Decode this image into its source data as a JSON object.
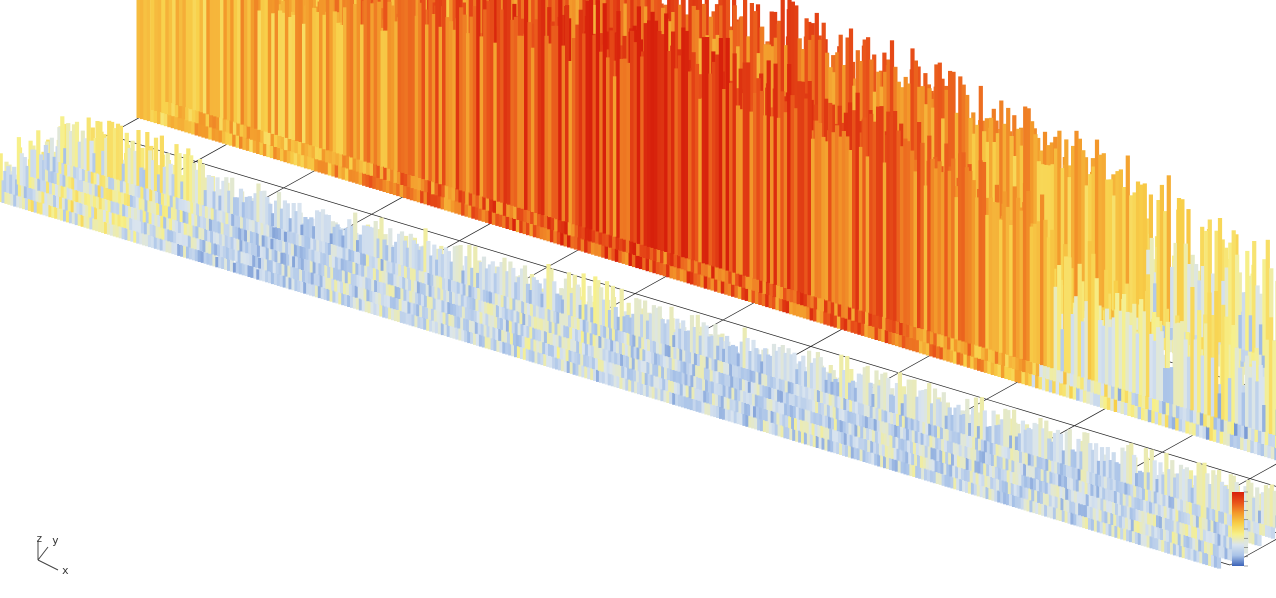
{
  "viewport": {
    "background": "#ffffff"
  },
  "chart_data": {
    "type": "3d-surface",
    "title": "",
    "grid": true,
    "legend": "colorbar-right",
    "colormap": [
      "#3b63b8",
      "#a9c3e8",
      "#d9e4ef",
      "#f7f08a",
      "#f8d04a",
      "#f39a2b",
      "#e9531a",
      "#d7200b"
    ],
    "value_range": [
      0,
      1
    ],
    "series": [
      {
        "name": "",
        "profile_x": [
          0,
          0.05,
          0.1,
          0.15,
          0.2,
          0.25,
          0.3,
          0.35,
          0.4,
          0.45,
          0.5,
          0.55,
          0.6,
          0.65,
          0.7,
          0.75,
          0.8,
          0.85,
          0.9,
          0.95,
          1
        ],
        "profile_y": [
          0.55,
          0.72,
          0.8,
          0.78,
          0.82,
          0.85,
          0.88,
          0.86,
          0.84,
          0.86,
          0.82,
          0.8,
          0.72,
          0.7,
          0.65,
          0.62,
          0.55,
          0.5,
          0.45,
          0.4,
          0.38
        ]
      },
      {
        "name": "",
        "profile_x": [
          0,
          0.05,
          0.1,
          0.15,
          0.2,
          0.25,
          0.3,
          0.35,
          0.4,
          0.45,
          0.5,
          0.55,
          0.6,
          0.65,
          0.7,
          0.75,
          0.8,
          0.85,
          0.9,
          0.95,
          1
        ],
        "profile_y": [
          0.6,
          0.7,
          0.68,
          0.72,
          0.8,
          0.88,
          0.9,
          0.92,
          0.95,
          0.93,
          0.9,
          0.88,
          0.85,
          0.78,
          0.7,
          0.62,
          0.55,
          0.52,
          0.5,
          0.45,
          0.4
        ]
      },
      {
        "name": "",
        "profile_x": [
          0,
          0.05,
          0.1,
          0.15,
          0.2,
          0.25,
          0.3,
          0.35,
          0.4,
          0.45,
          0.5,
          0.55,
          0.6,
          0.65,
          0.7,
          0.75,
          0.8,
          0.85,
          0.9,
          0.95,
          1
        ],
        "profile_y": [
          0.35,
          0.45,
          0.4,
          0.3,
          0.25,
          0.3,
          0.32,
          0.3,
          0.33,
          0.35,
          0.3,
          0.3,
          0.28,
          0.33,
          0.3,
          0.32,
          0.3,
          0.3,
          0.32,
          0.34,
          0.3
        ]
      }
    ]
  },
  "axes": {
    "x_label": "x",
    "y_label": "y",
    "z_label": "z"
  }
}
